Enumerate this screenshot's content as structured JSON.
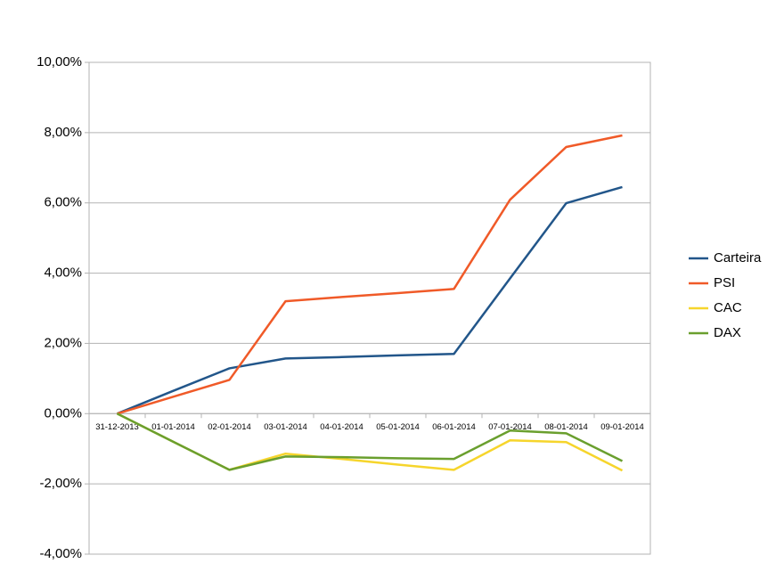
{
  "chart_data": {
    "type": "line",
    "categories": [
      "31-12-2013",
      "01-01-2014",
      "02-01-2014",
      "03-01-2014",
      "04-01-2014",
      "05-01-2014",
      "06-01-2014",
      "07-01-2014",
      "08-01-2014",
      "09-01-2014"
    ],
    "series": [
      {
        "name": "Carteira",
        "color": "#22568a",
        "values": [
          0,
          0.65,
          1.29,
          1.57,
          1.61,
          1.66,
          1.7,
          3.85,
          5.99,
          6.45
        ]
      },
      {
        "name": "PSI",
        "color": "#f05a28",
        "values": [
          0,
          0.48,
          0.96,
          3.2,
          3.32,
          3.43,
          3.55,
          6.09,
          7.59,
          7.92
        ]
      },
      {
        "name": "CAC",
        "color": "#f6d52c",
        "values": [
          0,
          -0.8,
          -1.6,
          -1.14,
          -1.29,
          -1.45,
          -1.6,
          -0.76,
          -0.81,
          -1.62
        ]
      },
      {
        "name": "DAX",
        "color": "#6a9f2e",
        "values": [
          0,
          -0.8,
          -1.6,
          -1.22,
          -1.24,
          -1.27,
          -1.29,
          -0.48,
          -0.56,
          -1.35
        ]
      }
    ],
    "ylim": [
      -4,
      10
    ],
    "yticks": [
      {
        "value": -4,
        "label": "-4,00%"
      },
      {
        "value": -2,
        "label": "-2,00%"
      },
      {
        "value": 0,
        "label": "0,00%"
      },
      {
        "value": 2,
        "label": "2,00%"
      },
      {
        "value": 4,
        "label": "4,00%"
      },
      {
        "value": 6,
        "label": "6,00%"
      },
      {
        "value": 8,
        "label": "8,00%"
      },
      {
        "value": 10,
        "label": "10,00%"
      }
    ],
    "grid": true,
    "legend": "right"
  }
}
